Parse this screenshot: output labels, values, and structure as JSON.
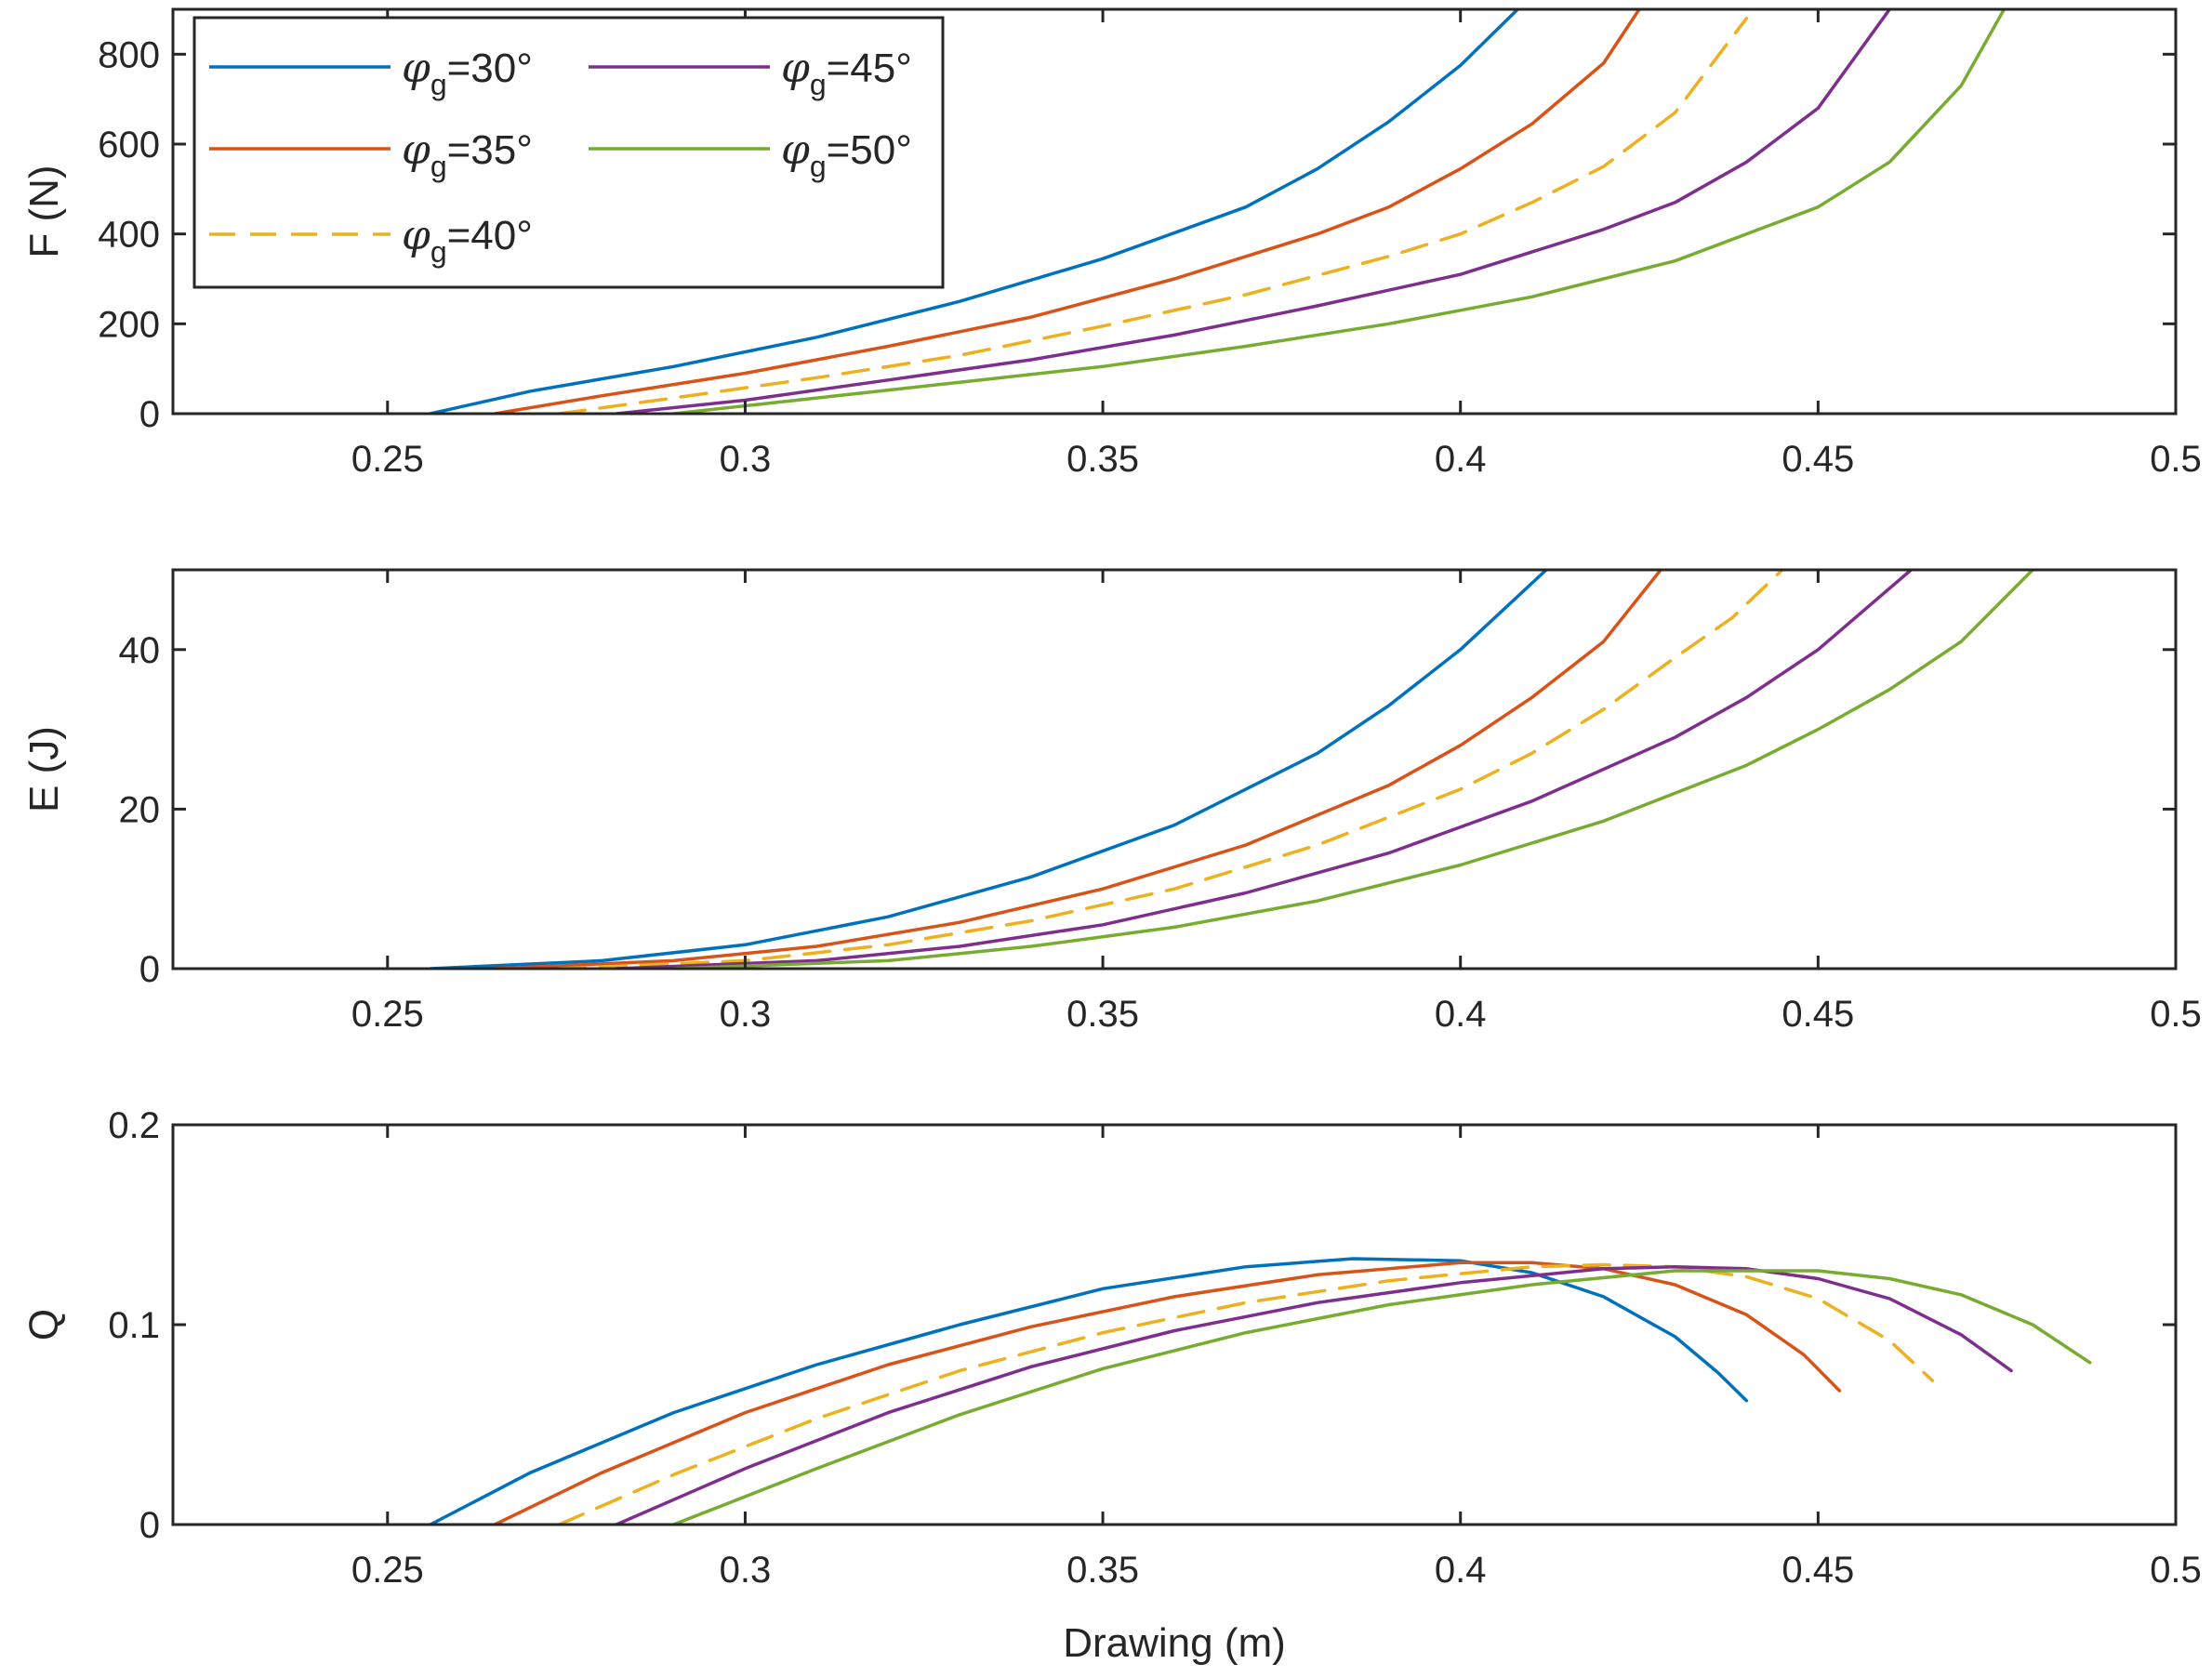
{
  "chart_data": [
    {
      "type": "line",
      "title": "",
      "xlabel": "",
      "ylabel": "F (N)",
      "xlim": [
        0.22,
        0.5
      ],
      "ylim": [
        0,
        900
      ],
      "xticks": [
        0.25,
        0.3,
        0.35,
        0.4,
        0.45,
        0.5
      ],
      "xtick_labels": [
        "0.25",
        "0.3",
        "0.35",
        "0.4",
        "0.45",
        "0.5"
      ],
      "yticks": [
        0,
        200,
        400,
        600,
        800
      ],
      "ytick_labels": [
        "0",
        "200",
        "400",
        "600",
        "800"
      ],
      "series": [
        {
          "name": "φg=30°",
          "color": "#0072BD",
          "dash": false,
          "x": [
            0.256,
            0.27,
            0.29,
            0.31,
            0.33,
            0.35,
            0.37,
            0.38,
            0.39,
            0.4,
            0.408
          ],
          "y": [
            0,
            50,
            105,
            170,
            250,
            345,
            460,
            545,
            650,
            775,
            900
          ]
        },
        {
          "name": "φg=35°",
          "color": "#D95319",
          "dash": false,
          "x": [
            0.265,
            0.28,
            0.3,
            0.32,
            0.34,
            0.36,
            0.38,
            0.39,
            0.4,
            0.41,
            0.42,
            0.425
          ],
          "y": [
            0,
            40,
            90,
            150,
            215,
            300,
            400,
            460,
            545,
            645,
            780,
            900
          ]
        },
        {
          "name": "φg=40°",
          "color": "#EDB120",
          "dash": true,
          "x": [
            0.274,
            0.29,
            0.31,
            0.33,
            0.35,
            0.37,
            0.39,
            0.4,
            0.41,
            0.42,
            0.43,
            0.44
          ],
          "y": [
            0,
            35,
            80,
            130,
            195,
            265,
            350,
            400,
            470,
            550,
            670,
            880
          ]
        },
        {
          "name": "φg=45°",
          "color": "#7E2F8E",
          "dash": false,
          "x": [
            0.282,
            0.3,
            0.32,
            0.34,
            0.36,
            0.38,
            0.4,
            0.42,
            0.43,
            0.44,
            0.45,
            0.46
          ],
          "y": [
            0,
            30,
            75,
            120,
            175,
            240,
            310,
            410,
            470,
            560,
            680,
            900
          ]
        },
        {
          "name": "φg=50°",
          "color": "#77AC30",
          "dash": false,
          "x": [
            0.29,
            0.31,
            0.33,
            0.35,
            0.37,
            0.39,
            0.41,
            0.43,
            0.45,
            0.46,
            0.47,
            0.476
          ],
          "y": [
            0,
            35,
            70,
            105,
            150,
            200,
            260,
            340,
            460,
            560,
            730,
            900
          ]
        }
      ]
    },
    {
      "type": "line",
      "title": "",
      "xlabel": "",
      "ylabel": "E (J)",
      "xlim": [
        0.22,
        0.5
      ],
      "ylim": [
        0,
        50
      ],
      "xticks": [
        0.25,
        0.3,
        0.35,
        0.4,
        0.45,
        0.5
      ],
      "xtick_labels": [
        "0.25",
        "0.3",
        "0.35",
        "0.4",
        "0.45",
        "0.5"
      ],
      "yticks": [
        0,
        20,
        40
      ],
      "ytick_labels": [
        "0",
        "20",
        "40"
      ],
      "series": [
        {
          "name": "φg=30°",
          "color": "#0072BD",
          "dash": false,
          "x": [
            0.256,
            0.28,
            0.3,
            0.32,
            0.34,
            0.36,
            0.38,
            0.39,
            0.4,
            0.412
          ],
          "y": [
            0,
            1,
            3,
            6.5,
            11.5,
            18,
            27,
            33,
            40,
            50
          ]
        },
        {
          "name": "φg=35°",
          "color": "#D95319",
          "dash": false,
          "x": [
            0.265,
            0.29,
            0.31,
            0.33,
            0.35,
            0.37,
            0.39,
            0.4,
            0.41,
            0.42,
            0.428
          ],
          "y": [
            0,
            1,
            2.8,
            5.8,
            10,
            15.5,
            23,
            28,
            34,
            41,
            50
          ]
        },
        {
          "name": "φg=40°",
          "color": "#EDB120",
          "dash": true,
          "x": [
            0.274,
            0.3,
            0.32,
            0.34,
            0.36,
            0.38,
            0.4,
            0.41,
            0.42,
            0.43,
            0.438,
            0.445
          ],
          "y": [
            0,
            1,
            3,
            6,
            10,
            15.5,
            22.5,
            27,
            32.5,
            39,
            44,
            50
          ]
        },
        {
          "name": "φg=45°",
          "color": "#7E2F8E",
          "dash": false,
          "x": [
            0.282,
            0.31,
            0.33,
            0.35,
            0.37,
            0.39,
            0.41,
            0.43,
            0.44,
            0.45,
            0.463
          ],
          "y": [
            0,
            1,
            2.8,
            5.5,
            9.5,
            14.5,
            21,
            29,
            34,
            40,
            50
          ]
        },
        {
          "name": "φg=50°",
          "color": "#77AC30",
          "dash": false,
          "x": [
            0.29,
            0.32,
            0.34,
            0.36,
            0.38,
            0.4,
            0.42,
            0.44,
            0.45,
            0.46,
            0.47,
            0.48
          ],
          "y": [
            0,
            1,
            2.8,
            5.2,
            8.5,
            13,
            18.5,
            25.5,
            30,
            35,
            41,
            50
          ]
        }
      ]
    },
    {
      "type": "line",
      "title": "",
      "xlabel": "Drawing (m)",
      "ylabel": "Q",
      "xlim": [
        0.22,
        0.5
      ],
      "ylim": [
        0,
        0.2
      ],
      "xticks": [
        0.25,
        0.3,
        0.35,
        0.4,
        0.45,
        0.5
      ],
      "xtick_labels": [
        "0.25",
        "0.3",
        "0.35",
        "0.4",
        "0.45",
        "0.5"
      ],
      "yticks": [
        0,
        0.1,
        0.2
      ],
      "ytick_labels": [
        "0",
        "0.1",
        "0.2"
      ],
      "series": [
        {
          "name": "φg=30°",
          "color": "#0072BD",
          "dash": false,
          "x": [
            0.256,
            0.27,
            0.29,
            0.31,
            0.33,
            0.35,
            0.37,
            0.385,
            0.4,
            0.41,
            0.42,
            0.43,
            0.436,
            0.44
          ],
          "y": [
            0,
            0.026,
            0.056,
            0.08,
            0.1,
            0.118,
            0.129,
            0.133,
            0.132,
            0.126,
            0.114,
            0.094,
            0.076,
            0.062
          ]
        },
        {
          "name": "φg=35°",
          "color": "#D95319",
          "dash": false,
          "x": [
            0.265,
            0.28,
            0.3,
            0.32,
            0.34,
            0.36,
            0.38,
            0.4,
            0.41,
            0.42,
            0.43,
            0.44,
            0.448,
            0.453
          ],
          "y": [
            0,
            0.026,
            0.056,
            0.08,
            0.099,
            0.114,
            0.125,
            0.131,
            0.131,
            0.128,
            0.12,
            0.105,
            0.085,
            0.067
          ]
        },
        {
          "name": "φg=40°",
          "color": "#EDB120",
          "dash": true,
          "x": [
            0.274,
            0.29,
            0.31,
            0.33,
            0.35,
            0.37,
            0.39,
            0.41,
            0.42,
            0.43,
            0.44,
            0.45,
            0.46,
            0.466
          ],
          "y": [
            0,
            0.025,
            0.053,
            0.077,
            0.096,
            0.111,
            0.122,
            0.129,
            0.13,
            0.129,
            0.124,
            0.113,
            0.092,
            0.072
          ]
        },
        {
          "name": "φg=45°",
          "color": "#7E2F8E",
          "dash": false,
          "x": [
            0.282,
            0.3,
            0.32,
            0.34,
            0.36,
            0.38,
            0.4,
            0.42,
            0.43,
            0.44,
            0.45,
            0.46,
            0.47,
            0.477
          ],
          "y": [
            0,
            0.028,
            0.056,
            0.079,
            0.097,
            0.111,
            0.121,
            0.128,
            0.129,
            0.128,
            0.123,
            0.113,
            0.095,
            0.077
          ]
        },
        {
          "name": "φg=50°",
          "color": "#77AC30",
          "dash": false,
          "x": [
            0.29,
            0.31,
            0.33,
            0.35,
            0.37,
            0.39,
            0.41,
            0.43,
            0.45,
            0.46,
            0.47,
            0.48,
            0.488
          ],
          "y": [
            0,
            0.028,
            0.055,
            0.078,
            0.096,
            0.11,
            0.12,
            0.127,
            0.127,
            0.123,
            0.115,
            0.1,
            0.081
          ]
        }
      ]
    }
  ],
  "legend": {
    "placement": "top-left of top panel",
    "items": [
      {
        "sym": "φ",
        "sub": "g",
        "val": "=30°",
        "color": "#0072BD",
        "dash": false
      },
      {
        "sym": "φ",
        "sub": "g",
        "val": "=35°",
        "color": "#D95319",
        "dash": false
      },
      {
        "sym": "φ",
        "sub": "g",
        "val": "=40°",
        "color": "#EDB120",
        "dash": true
      },
      {
        "sym": "φ",
        "sub": "g",
        "val": "=45°",
        "color": "#7E2F8E",
        "dash": false
      },
      {
        "sym": "φ",
        "sub": "g",
        "val": "=50°",
        "color": "#77AC30",
        "dash": false
      }
    ]
  }
}
